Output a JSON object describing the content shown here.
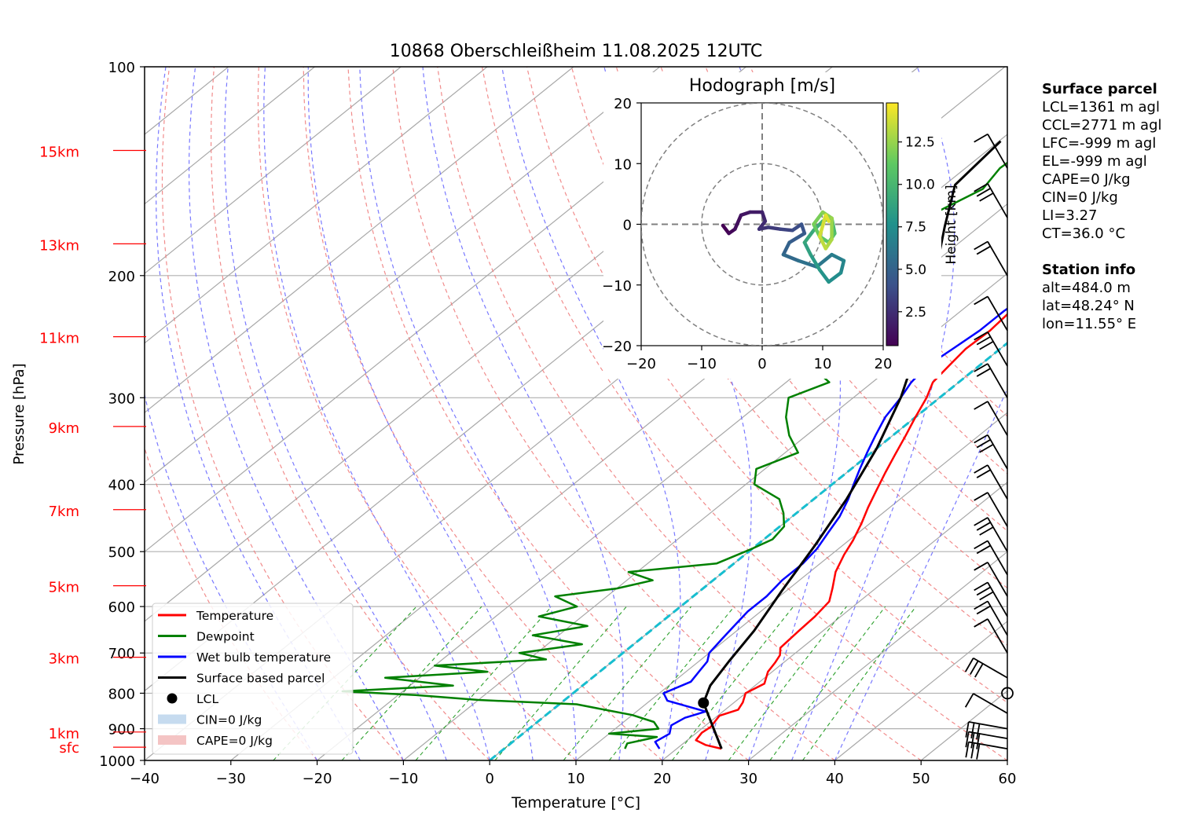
{
  "chart_data": {
    "type": "line",
    "title": "10868 Oberschleißheim 11.08.2025 12UTC",
    "xlabel": "Temperature [°C]",
    "ylabel": "Pressure [hPa]",
    "xlim": [
      -40,
      60
    ],
    "ylim_pressure": [
      1000,
      100
    ],
    "log_pressure_axis": true,
    "xticks": [
      "−40",
      "−30",
      "−20",
      "−10",
      "0",
      "10",
      "20",
      "30",
      "40",
      "50",
      "60"
    ],
    "pressure_ticks": [
      1000,
      900,
      800,
      700,
      600,
      500,
      400,
      300,
      200,
      100
    ],
    "height_labels": [
      {
        "label": "sfc",
        "pressure": 957
      },
      {
        "label": "1km",
        "pressure": 910
      },
      {
        "label": "3km",
        "pressure": 710
      },
      {
        "label": "5km",
        "pressure": 560
      },
      {
        "label": "7km",
        "pressure": 435
      },
      {
        "label": "9km",
        "pressure": 330
      },
      {
        "label": "11km",
        "pressure": 245
      },
      {
        "label": "13km",
        "pressure": 180
      },
      {
        "label": "15km",
        "pressure": 132
      }
    ],
    "grid": true,
    "legend_position": "lower-left",
    "colors": {
      "temperature": "#ff0000",
      "dewpoint": "#008000",
      "wetbulb": "#0000ff",
      "parcel": "#000000",
      "dry_adiabat": "#f08080",
      "moist_adiabat": "#6a6aff",
      "mixing_ratio": "#2ca02c",
      "zero_isotherm": "#17becf"
    },
    "series": [
      {
        "name": "Temperature",
        "points": [
          [
            25.2,
            962
          ],
          [
            22.8,
            950
          ],
          [
            21.0,
            935
          ],
          [
            20.6,
            912
          ],
          [
            20.8,
            895
          ],
          [
            20.2,
            862
          ],
          [
            21.5,
            845
          ],
          [
            21.0,
            825
          ],
          [
            20.0,
            800
          ],
          [
            20.8,
            775
          ],
          [
            19.5,
            745
          ],
          [
            19.0,
            722
          ],
          [
            18.5,
            705
          ],
          [
            17.5,
            688
          ],
          [
            17.2,
            650
          ],
          [
            17.0,
            620
          ],
          [
            16.5,
            590
          ],
          [
            15.0,
            565
          ],
          [
            13.0,
            535
          ],
          [
            11.5,
            505
          ],
          [
            10.5,
            482
          ],
          [
            9.0,
            455
          ],
          [
            7.5,
            432
          ],
          [
            6.0,
            408
          ],
          [
            4.5,
            385
          ],
          [
            3.0,
            362
          ],
          [
            1.5,
            340
          ],
          [
            0.0,
            320
          ],
          [
            -1.5,
            300
          ],
          [
            -3.0,
            285
          ],
          [
            -3.5,
            270
          ],
          [
            -4.0,
            255
          ],
          [
            -3.8,
            240
          ],
          [
            -4.2,
            225
          ],
          [
            -3.5,
            210
          ],
          [
            -3.0,
            195
          ],
          [
            -3.5,
            180
          ],
          [
            -4.2,
            165
          ],
          [
            -4.0,
            150
          ],
          [
            -3.5,
            140
          ],
          [
            -2.5,
            134
          ],
          [
            -1.5,
            128
          ]
        ]
      },
      {
        "name": "Dewpoint",
        "points": [
          [
            14.0,
            962
          ],
          [
            13.5,
            945
          ],
          [
            16.0,
            925
          ],
          [
            10.0,
            915
          ],
          [
            15.0,
            900
          ],
          [
            13.5,
            880
          ],
          [
            10.0,
            860
          ],
          [
            6.0,
            845
          ],
          [
            2.0,
            830
          ],
          [
            -10.0,
            818
          ],
          [
            -18.0,
            805
          ],
          [
            -27.0,
            795
          ],
          [
            -15.0,
            780
          ],
          [
            -24.0,
            760
          ],
          [
            -13.0,
            745
          ],
          [
            -20.0,
            730
          ],
          [
            -8.0,
            715
          ],
          [
            -12.0,
            700
          ],
          [
            -6.0,
            680
          ],
          [
            -13.0,
            660
          ],
          [
            -8.0,
            640
          ],
          [
            -15.0,
            620
          ],
          [
            -12.0,
            600
          ],
          [
            -16.0,
            580
          ],
          [
            -10.0,
            565
          ],
          [
            -7.0,
            550
          ],
          [
            -11.0,
            535
          ],
          [
            -2.0,
            520
          ],
          [
            0.0,
            495
          ],
          [
            1.0,
            480
          ],
          [
            0.5,
            460
          ],
          [
            -1.5,
            440
          ],
          [
            -4.0,
            420
          ],
          [
            -9.0,
            400
          ],
          [
            -11.0,
            380
          ],
          [
            -8.5,
            360
          ],
          [
            -12.0,
            340
          ],
          [
            -15.0,
            320
          ],
          [
            -17.5,
            300
          ],
          [
            -15.0,
            285
          ],
          [
            -19.5,
            270
          ],
          [
            -21.0,
            255
          ],
          [
            -22.5,
            240
          ],
          [
            -25.5,
            225
          ],
          [
            -27.0,
            210
          ],
          [
            -28.0,
            195
          ],
          [
            -27.0,
            180
          ],
          [
            -27.5,
            165
          ],
          [
            -25.0,
            150
          ],
          [
            -26.0,
            140
          ],
          [
            -25.5,
            128
          ]
        ]
      },
      {
        "name": "Wet bulb temperature",
        "points": [
          [
            18.0,
            962
          ],
          [
            16.5,
            940
          ],
          [
            17.0,
            915
          ],
          [
            16.0,
            890
          ],
          [
            16.5,
            868
          ],
          [
            18.0,
            850
          ],
          [
            15.0,
            835
          ],
          [
            12.0,
            820
          ],
          [
            10.5,
            800
          ],
          [
            12.0,
            770
          ],
          [
            11.5,
            745
          ],
          [
            11.0,
            720
          ],
          [
            10.0,
            700
          ],
          [
            9.5,
            670
          ],
          [
            9.0,
            640
          ],
          [
            8.5,
            610
          ],
          [
            8.5,
            580
          ],
          [
            8.0,
            550
          ],
          [
            8.0,
            520
          ],
          [
            7.5,
            495
          ],
          [
            6.5,
            470
          ],
          [
            5.5,
            445
          ],
          [
            4.0,
            420
          ],
          [
            2.5,
            400
          ],
          [
            1.0,
            380
          ],
          [
            -0.5,
            360
          ],
          [
            -2.0,
            340
          ],
          [
            -3.5,
            320
          ],
          [
            -4.5,
            300
          ],
          [
            -5.5,
            285
          ],
          [
            -6.0,
            270
          ],
          [
            -5.5,
            255
          ],
          [
            -5.0,
            240
          ],
          [
            -5.0,
            225
          ],
          [
            -4.5,
            210
          ],
          [
            -4.0,
            195
          ],
          [
            -4.5,
            180
          ],
          [
            -4.8,
            165
          ],
          [
            -4.5,
            150
          ],
          [
            -3.5,
            140
          ],
          [
            -2.0,
            128
          ]
        ]
      },
      {
        "name": "Surface based parcel",
        "points": [
          [
            25.2,
            962
          ],
          [
            16.5,
            826
          ],
          [
            14.8,
            780
          ],
          [
            13.5,
            720
          ],
          [
            12.0,
            650
          ],
          [
            9.5,
            570
          ],
          [
            6.8,
            490
          ],
          [
            3.8,
            420
          ],
          [
            0.0,
            355
          ],
          [
            -4.5,
            300
          ],
          [
            -9.0,
            260
          ],
          [
            -14.0,
            225
          ],
          [
            -19.0,
            195
          ],
          [
            -24.0,
            170
          ],
          [
            -28.8,
            148
          ],
          [
            -29.8,
            128
          ]
        ]
      }
    ],
    "lcl_point": {
      "temperature": 16.5,
      "pressure": 826
    },
    "wind_barbs_pressures": [
      962,
      930,
      900,
      855,
      800,
      760,
      700,
      660,
      620,
      580,
      540,
      500,
      460,
      420,
      380,
      340,
      300,
      270,
      240,
      200,
      165,
      140
    ],
    "hodograph": {
      "title": "Hodograph [m/s]",
      "xlim": [
        -20,
        20
      ],
      "ylim": [
        -20,
        20
      ],
      "ticks": [
        "−20",
        "−10",
        "0",
        "10",
        "20"
      ],
      "tick_values": [
        -20,
        -10,
        0,
        10,
        20
      ],
      "rings": [
        10,
        20
      ],
      "colorbar_label": "Height [km]",
      "colorbar_ticks": [
        "2.5",
        "5.0",
        "7.5",
        "10.0",
        "12.5"
      ],
      "colorbar_tick_values": [
        2.5,
        5.0,
        7.5,
        10.0,
        12.5
      ],
      "colorbar_range": [
        0.5,
        14.8
      ],
      "points": [
        [
          -6.5,
          -0.2,
          0.5
        ],
        [
          -5.5,
          -1.5,
          0.8
        ],
        [
          -4.5,
          -0.8,
          1.1
        ],
        [
          -3.5,
          1.5,
          1.4
        ],
        [
          -2.0,
          2.0,
          1.7
        ],
        [
          0.0,
          2.0,
          2.0
        ],
        [
          0.5,
          0.5,
          2.3
        ],
        [
          -0.5,
          -0.8,
          2.6
        ],
        [
          1.0,
          -0.5,
          3.0
        ],
        [
          3.0,
          -0.8,
          3.4
        ],
        [
          5.0,
          -1.0,
          3.8
        ],
        [
          6.5,
          0.0,
          4.2
        ],
        [
          7.0,
          -1.5,
          4.6
        ],
        [
          4.5,
          -3.0,
          5.0
        ],
        [
          3.5,
          -5.0,
          5.4
        ],
        [
          6.0,
          -6.0,
          5.8
        ],
        [
          9.0,
          -7.0,
          6.2
        ],
        [
          11.5,
          -5.0,
          6.6
        ],
        [
          13.5,
          -6.0,
          7.0
        ],
        [
          13.0,
          -8.0,
          7.4
        ],
        [
          11.0,
          -9.5,
          7.8
        ],
        [
          9.5,
          -7.5,
          8.2
        ],
        [
          8.0,
          -5.0,
          8.6
        ],
        [
          7.0,
          -3.0,
          9.0
        ],
        [
          8.5,
          -1.0,
          9.4
        ],
        [
          10.0,
          0.5,
          9.8
        ],
        [
          11.5,
          1.0,
          10.2
        ],
        [
          12.0,
          -1.5,
          10.6
        ],
        [
          11.0,
          -3.0,
          11.0
        ],
        [
          9.5,
          -2.0,
          11.4
        ],
        [
          8.5,
          0.0,
          11.8
        ],
        [
          10.0,
          2.0,
          12.2
        ],
        [
          11.5,
          1.0,
          12.6
        ],
        [
          11.5,
          -2.5,
          13.0
        ],
        [
          10.5,
          -4.0,
          13.4
        ],
        [
          9.5,
          -2.0,
          13.8
        ],
        [
          10.5,
          1.5,
          14.2
        ],
        [
          11.0,
          0.5,
          14.6
        ]
      ]
    },
    "legend": [
      {
        "label": "Temperature",
        "kind": "line",
        "color": "#ff0000"
      },
      {
        "label": "Dewpoint",
        "kind": "line",
        "color": "#008000"
      },
      {
        "label": "Wet bulb temperature",
        "kind": "line",
        "color": "#0000ff"
      },
      {
        "label": "Surface based parcel",
        "kind": "line",
        "color": "#000000"
      },
      {
        "label": "LCL",
        "kind": "dot",
        "color": "#000000"
      },
      {
        "label": "CIN=0 J/kg",
        "kind": "patch",
        "color": "#c6dbef"
      },
      {
        "label": "CAPE=0 J/kg",
        "kind": "patch",
        "color": "#f4c4c4"
      }
    ]
  },
  "surface_parcel": {
    "heading": "Surface parcel",
    "lines": [
      "LCL=1361 m agl",
      "CCL=2771 m agl",
      "LFC=-999 m agl",
      "EL=-999 m agl",
      "CAPE=0 J/kg",
      "CIN=0 J/kg",
      "LI=3.27",
      "CT=36.0 °C"
    ]
  },
  "station_info": {
    "heading": "Station info",
    "lines": [
      "alt=484.0 m",
      "lat=48.24° N",
      "lon=11.55° E"
    ]
  }
}
